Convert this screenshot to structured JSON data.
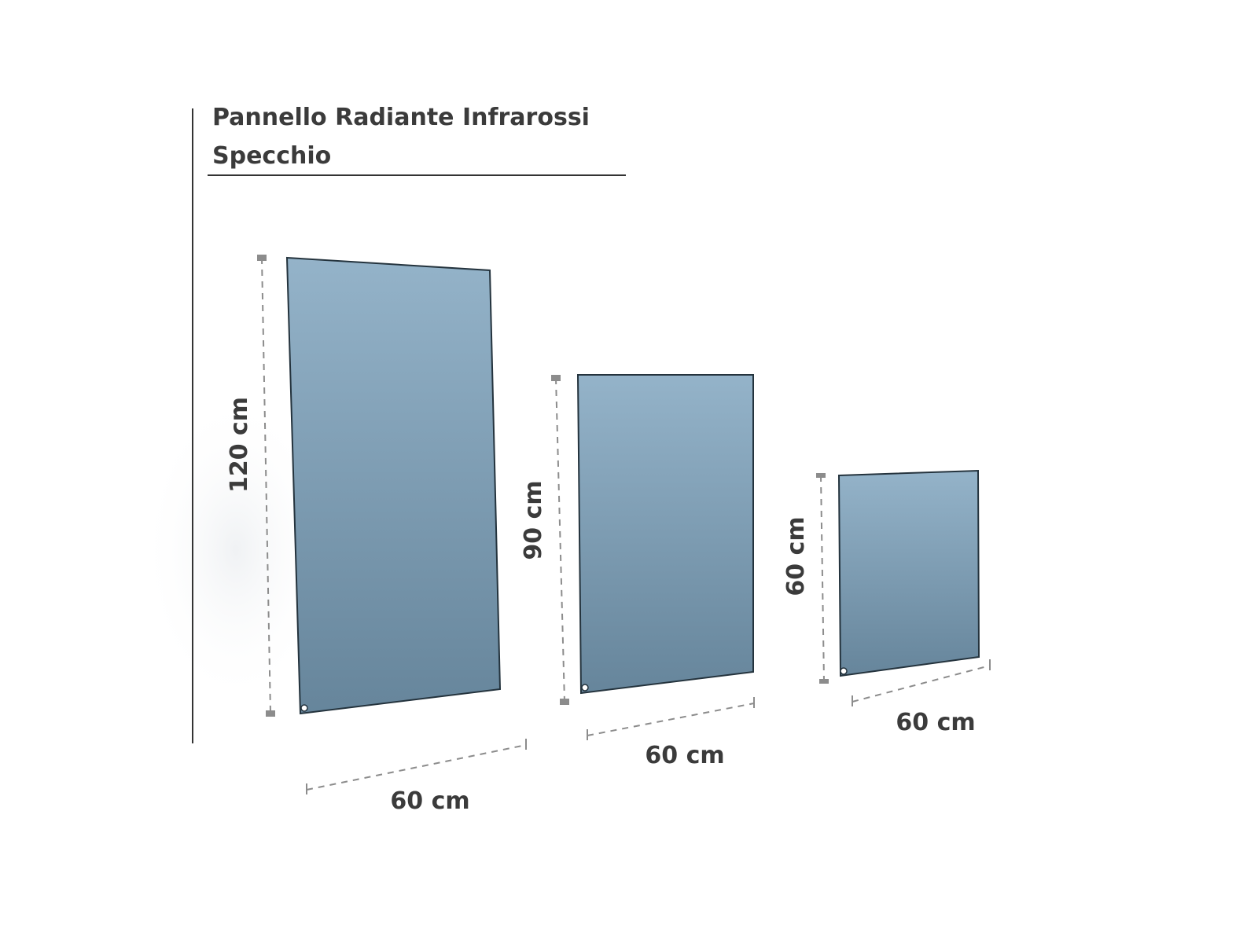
{
  "header": {
    "title_lines": [
      "Pannello Radiante Infrarossi",
      "Specchio"
    ]
  },
  "panels": [
    {
      "height_label": "120 cm",
      "width_label": "60 cm"
    },
    {
      "height_label": "90 cm",
      "width_label": "60 cm"
    },
    {
      "height_label": "60 cm",
      "width_label": "60 cm"
    }
  ]
}
